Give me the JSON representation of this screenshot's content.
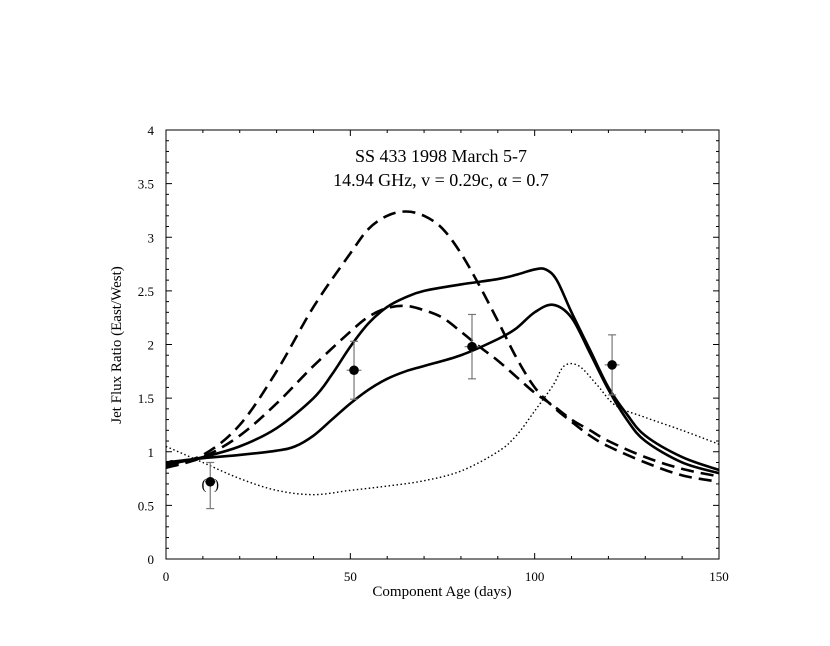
{
  "chart_data": {
    "type": "line",
    "title": "SS 433  1998 March 5-7",
    "subtitle": "14.94 GHz, v = 0.29c,  α = 0.7",
    "xlabel": "Component Age (days)",
    "ylabel": "Jet Flux Ratio (East/West)",
    "xlim": [
      0,
      150
    ],
    "ylim": [
      0,
      4
    ],
    "xticks": [
      0,
      50,
      100,
      150
    ],
    "xtick_labels": [
      "0",
      "50",
      "100",
      "150"
    ],
    "yticks": [
      0,
      0.5,
      1,
      1.5,
      2,
      2.5,
      3,
      3.5,
      4
    ],
    "ytick_labels": [
      "0",
      "0.5",
      "1",
      "1.5",
      "2",
      "2.5",
      "3",
      "3.5",
      "4"
    ],
    "grid": false,
    "legend": "none",
    "series": [
      {
        "name": "dashed-upper",
        "style": "dashed",
        "x": [
          0,
          10,
          20,
          30,
          40,
          50,
          55,
          60,
          65,
          70,
          75,
          80,
          85,
          90,
          95,
          100,
          105,
          110,
          115,
          120,
          130,
          140,
          150
        ],
        "y": [
          0.87,
          0.97,
          1.25,
          1.75,
          2.35,
          2.85,
          3.08,
          3.2,
          3.24,
          3.2,
          3.08,
          2.85,
          2.55,
          2.22,
          1.88,
          1.6,
          1.42,
          1.28,
          1.15,
          1.05,
          0.9,
          0.78,
          0.72
        ]
      },
      {
        "name": "dashed-lower",
        "style": "dashed",
        "x": [
          0,
          10,
          20,
          30,
          40,
          50,
          55,
          60,
          65,
          70,
          75,
          80,
          85,
          90,
          95,
          100,
          105,
          110,
          115,
          120,
          130,
          140,
          150
        ],
        "y": [
          0.85,
          0.95,
          1.15,
          1.45,
          1.8,
          2.12,
          2.26,
          2.34,
          2.36,
          2.32,
          2.25,
          2.12,
          1.98,
          1.85,
          1.7,
          1.55,
          1.43,
          1.3,
          1.2,
          1.1,
          0.95,
          0.84,
          0.77
        ]
      },
      {
        "name": "solid-upper",
        "style": "solid",
        "x": [
          0,
          10,
          20,
          30,
          40,
          45,
          50,
          55,
          60,
          65,
          70,
          80,
          90,
          95,
          100,
          103,
          106,
          110,
          115,
          120,
          125,
          130,
          140,
          150
        ],
        "y": [
          0.88,
          0.95,
          1.05,
          1.22,
          1.5,
          1.72,
          1.98,
          2.2,
          2.35,
          2.44,
          2.5,
          2.56,
          2.61,
          2.65,
          2.7,
          2.7,
          2.6,
          2.3,
          1.95,
          1.6,
          1.35,
          1.15,
          0.95,
          0.83
        ]
      },
      {
        "name": "solid-lower",
        "style": "solid",
        "x": [
          0,
          10,
          20,
          30,
          35,
          40,
          45,
          50,
          55,
          60,
          65,
          70,
          80,
          90,
          95,
          100,
          105,
          110,
          115,
          120,
          125,
          130,
          140,
          150
        ],
        "y": [
          0.9,
          0.94,
          0.97,
          1.01,
          1.05,
          1.15,
          1.3,
          1.45,
          1.58,
          1.68,
          1.75,
          1.8,
          1.9,
          2.05,
          2.15,
          2.3,
          2.37,
          2.25,
          1.92,
          1.58,
          1.3,
          1.1,
          0.9,
          0.8
        ]
      },
      {
        "name": "dotted",
        "style": "dotted",
        "x": [
          0,
          10,
          20,
          30,
          40,
          50,
          60,
          70,
          80,
          90,
          95,
          100,
          105,
          108,
          112,
          117,
          122,
          130,
          140,
          150
        ],
        "y": [
          1.05,
          0.9,
          0.75,
          0.64,
          0.6,
          0.64,
          0.68,
          0.73,
          0.82,
          1.0,
          1.15,
          1.38,
          1.62,
          1.8,
          1.8,
          1.62,
          1.43,
          1.32,
          1.2,
          1.07
        ]
      }
    ],
    "points": [
      {
        "x": 12,
        "y": 0.72,
        "yerr_low": 0.25,
        "yerr_high": 0.18,
        "xerr": 1.5,
        "label": "(  )"
      },
      {
        "x": 51,
        "y": 1.76,
        "yerr_low": 0.27,
        "yerr_high": 0.27,
        "xerr": 2
      },
      {
        "x": 83,
        "y": 1.98,
        "yerr_low": 0.3,
        "yerr_high": 0.3,
        "xerr": 2
      },
      {
        "x": 121,
        "y": 1.81,
        "yerr_low": 0.28,
        "yerr_high": 0.28,
        "xerr": 2
      }
    ],
    "edge_markers": [
      {
        "x": 1,
        "y": 0.89
      }
    ]
  }
}
